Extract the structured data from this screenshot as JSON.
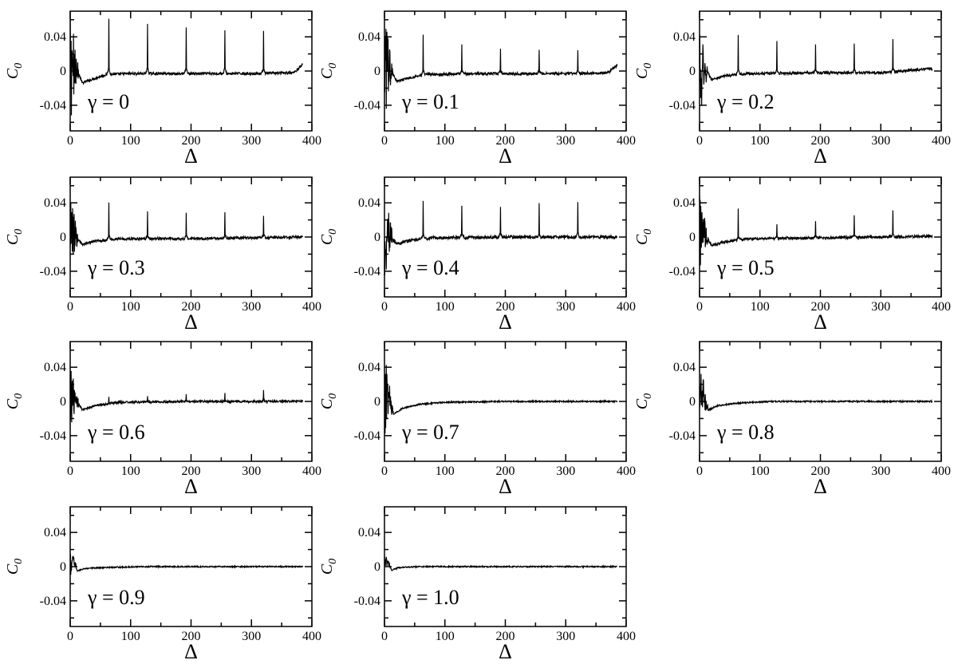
{
  "figure": {
    "panel_order": [
      "γ = 0",
      "γ = 0.1",
      "γ = 0.2",
      "γ = 0.3",
      "γ = 0.4",
      "γ = 0.5",
      "γ = 0.6",
      "γ = 0.7",
      "γ = 0.8",
      "γ = 0.9",
      "γ = 1.0"
    ]
  },
  "chart_data": [
    {
      "type": "line",
      "annotation": "γ = 0",
      "xlabel": "Δ",
      "ylabel": "C",
      "ylabel_sub": "0",
      "xlim": [
        0,
        400
      ],
      "ylim": [
        -0.07,
        0.07
      ],
      "xticks": [
        0,
        100,
        200,
        300,
        400
      ],
      "xtick_labels": [
        "0",
        "100",
        "200",
        "300",
        "400"
      ],
      "yticks": [
        0.04,
        0,
        -0.04
      ],
      "ytick_labels": [
        "0.04",
        "0",
        "-0.04"
      ],
      "series": [
        {
          "baseline": [
            [
              0,
              0
            ],
            [
              8,
              0.008
            ],
            [
              20,
              -0.014
            ],
            [
              35,
              -0.01
            ],
            [
              60,
              -0.004
            ],
            [
              100,
              -0.003
            ],
            [
              200,
              -0.003
            ],
            [
              300,
              -0.003
            ],
            [
              370,
              -0.002
            ],
            [
              385,
              0.008
            ]
          ],
          "spikes": [
            [
              64,
              0.066
            ],
            [
              128,
              0.059
            ],
            [
              192,
              0.054
            ],
            [
              256,
              0.051
            ],
            [
              320,
              0.051
            ]
          ],
          "initial_oscillation": {
            "range": [
              0,
              15
            ],
            "amplitude": 0.065
          },
          "noise": 0.0015
        }
      ]
    },
    {
      "type": "line",
      "annotation": "γ = 0.1",
      "xlabel": "Δ",
      "ylabel": "C",
      "ylabel_sub": "0",
      "xlim": [
        0,
        400
      ],
      "ylim": [
        -0.07,
        0.07
      ],
      "xticks": [
        0,
        100,
        200,
        300,
        400
      ],
      "xtick_labels": [
        "0",
        "100",
        "200",
        "300",
        "400"
      ],
      "yticks": [
        0.04,
        0,
        -0.04
      ],
      "ytick_labels": [
        "0.04",
        "0",
        "-0.04"
      ],
      "series": [
        {
          "baseline": [
            [
              0,
              0
            ],
            [
              8,
              0.005
            ],
            [
              20,
              -0.012
            ],
            [
              40,
              -0.008
            ],
            [
              70,
              -0.004
            ],
            [
              150,
              -0.003
            ],
            [
              300,
              -0.003
            ],
            [
              370,
              -0.002
            ],
            [
              385,
              0.007
            ]
          ],
          "spikes": [
            [
              64,
              0.046
            ],
            [
              128,
              0.033
            ],
            [
              192,
              0.03
            ],
            [
              256,
              0.028
            ],
            [
              320,
              0.027
            ]
          ],
          "initial_oscillation": {
            "range": [
              0,
              15
            ],
            "amplitude": 0.06
          },
          "noise": 0.0015
        }
      ]
    },
    {
      "type": "line",
      "annotation": "γ = 0.2",
      "xlabel": "Δ",
      "ylabel": "C",
      "ylabel_sub": "0",
      "xlim": [
        0,
        400
      ],
      "ylim": [
        -0.07,
        0.07
      ],
      "xticks": [
        0,
        100,
        200,
        300,
        400
      ],
      "xtick_labels": [
        "0",
        "100",
        "200",
        "300",
        "400"
      ],
      "yticks": [
        0.04,
        0,
        -0.04
      ],
      "ytick_labels": [
        "0.04",
        "0",
        "-0.04"
      ],
      "series": [
        {
          "baseline": [
            [
              0,
              0
            ],
            [
              8,
              0.004
            ],
            [
              20,
              -0.01
            ],
            [
              40,
              -0.006
            ],
            [
              80,
              -0.003
            ],
            [
              200,
              -0.002
            ],
            [
              300,
              -0.002
            ],
            [
              385,
              0.003
            ]
          ],
          "spikes": [
            [
              64,
              0.046
            ],
            [
              128,
              0.037
            ],
            [
              192,
              0.032
            ],
            [
              256,
              0.034
            ],
            [
              320,
              0.037
            ]
          ],
          "initial_oscillation": {
            "range": [
              0,
              15
            ],
            "amplitude": 0.06
          },
          "noise": 0.0015
        }
      ]
    },
    {
      "type": "line",
      "annotation": "γ = 0.3",
      "xlabel": "Δ",
      "ylabel": "C",
      "ylabel_sub": "0",
      "xlim": [
        0,
        400
      ],
      "ylim": [
        -0.07,
        0.07
      ],
      "xticks": [
        0,
        100,
        200,
        300,
        400
      ],
      "xtick_labels": [
        "0",
        "100",
        "200",
        "300",
        "400"
      ],
      "yticks": [
        0.04,
        0,
        -0.04
      ],
      "ytick_labels": [
        "0.04",
        "0",
        "-0.04"
      ],
      "series": [
        {
          "baseline": [
            [
              0,
              0
            ],
            [
              8,
              0.004
            ],
            [
              20,
              -0.009
            ],
            [
              40,
              -0.005
            ],
            [
              80,
              -0.002
            ],
            [
              200,
              -0.002
            ],
            [
              385,
              0.0
            ]
          ],
          "spikes": [
            [
              64,
              0.044
            ],
            [
              128,
              0.032
            ],
            [
              192,
              0.03
            ],
            [
              256,
              0.03
            ],
            [
              320,
              0.026
            ]
          ],
          "initial_oscillation": {
            "range": [
              0,
              15
            ],
            "amplitude": 0.05
          },
          "noise": 0.0015
        }
      ]
    },
    {
      "type": "line",
      "annotation": "γ = 0.4",
      "xlabel": "Δ",
      "ylabel": "C",
      "ylabel_sub": "0",
      "xlim": [
        0,
        400
      ],
      "ylim": [
        -0.07,
        0.07
      ],
      "xticks": [
        0,
        100,
        200,
        300,
        400
      ],
      "xtick_labels": [
        "0",
        "100",
        "200",
        "300",
        "400"
      ],
      "yticks": [
        0.04,
        0,
        -0.04
      ],
      "ytick_labels": [
        "0.04",
        "0",
        "-0.04"
      ],
      "series": [
        {
          "baseline": [
            [
              0,
              0
            ],
            [
              8,
              0.004
            ],
            [
              20,
              -0.008
            ],
            [
              40,
              -0.004
            ],
            [
              80,
              -0.001
            ],
            [
              200,
              0.0
            ],
            [
              385,
              0.0
            ]
          ],
          "spikes": [
            [
              64,
              0.046
            ],
            [
              128,
              0.038
            ],
            [
              192,
              0.036
            ],
            [
              256,
              0.039
            ],
            [
              320,
              0.04
            ]
          ],
          "initial_oscillation": {
            "range": [
              0,
              15
            ],
            "amplitude": 0.05
          },
          "noise": 0.0018
        }
      ]
    },
    {
      "type": "line",
      "annotation": "γ = 0.5",
      "xlabel": "Δ",
      "ylabel": "C",
      "ylabel_sub": "0",
      "xlim": [
        0,
        400
      ],
      "ylim": [
        -0.07,
        0.07
      ],
      "xticks": [
        0,
        100,
        200,
        300,
        400
      ],
      "xtick_labels": [
        "0",
        "100",
        "200",
        "300",
        "400"
      ],
      "yticks": [
        0.04,
        0,
        -0.04
      ],
      "ytick_labels": [
        "0.04",
        "0",
        "-0.04"
      ],
      "series": [
        {
          "baseline": [
            [
              0,
              0
            ],
            [
              8,
              0.004
            ],
            [
              20,
              -0.01
            ],
            [
              40,
              -0.006
            ],
            [
              80,
              -0.002
            ],
            [
              200,
              -0.001
            ],
            [
              385,
              0.001
            ]
          ],
          "spikes": [
            [
              64,
              0.036
            ],
            [
              128,
              0.018
            ],
            [
              192,
              0.021
            ],
            [
              256,
              0.025
            ],
            [
              320,
              0.032
            ]
          ],
          "initial_oscillation": {
            "range": [
              0,
              15
            ],
            "amplitude": 0.05
          },
          "noise": 0.0015
        }
      ]
    },
    {
      "type": "line",
      "annotation": "γ = 0.6",
      "xlabel": "Δ",
      "ylabel": "C",
      "ylabel_sub": "0",
      "xlim": [
        0,
        400
      ],
      "ylim": [
        -0.07,
        0.07
      ],
      "xticks": [
        0,
        100,
        200,
        300,
        400
      ],
      "xtick_labels": [
        "0",
        "100",
        "200",
        "300",
        "400"
      ],
      "yticks": [
        0.04,
        0,
        -0.04
      ],
      "ytick_labels": [
        "0.04",
        "0",
        "-0.04"
      ],
      "series": [
        {
          "baseline": [
            [
              0,
              0
            ],
            [
              8,
              0.004
            ],
            [
              20,
              -0.01
            ],
            [
              40,
              -0.005
            ],
            [
              80,
              -0.001
            ],
            [
              200,
              0.0
            ],
            [
              385,
              0.0
            ]
          ],
          "spikes": [
            [
              64,
              0.008
            ],
            [
              128,
              0.006
            ],
            [
              192,
              0.008
            ],
            [
              256,
              0.009
            ],
            [
              320,
              0.013
            ]
          ],
          "initial_oscillation": {
            "range": [
              0,
              15
            ],
            "amplitude": 0.04
          },
          "noise": 0.0013
        }
      ]
    },
    {
      "type": "line",
      "annotation": "γ = 0.7",
      "xlabel": "Δ",
      "ylabel": "C",
      "ylabel_sub": "0",
      "xlim": [
        0,
        400
      ],
      "ylim": [
        -0.07,
        0.07
      ],
      "xticks": [
        0,
        100,
        200,
        300,
        400
      ],
      "xtick_labels": [
        "0",
        "100",
        "200",
        "300",
        "400"
      ],
      "yticks": [
        0.04,
        0,
        -0.04
      ],
      "ytick_labels": [
        "0.04",
        "0",
        "-0.04"
      ],
      "series": [
        {
          "baseline": [
            [
              0,
              0
            ],
            [
              5,
              0.012
            ],
            [
              15,
              -0.015
            ],
            [
              30,
              -0.008
            ],
            [
              60,
              -0.003
            ],
            [
              100,
              -0.001
            ],
            [
              200,
              0.0
            ],
            [
              385,
              0.0
            ]
          ],
          "spikes": [],
          "initial_oscillation": {
            "range": [
              0,
              15
            ],
            "amplitude": 0.045
          },
          "noise": 0.0008
        }
      ]
    },
    {
      "type": "line",
      "annotation": "γ = 0.8",
      "xlabel": "Δ",
      "ylabel": "C",
      "ylabel_sub": "0",
      "xlim": [
        0,
        400
      ],
      "ylim": [
        -0.07,
        0.07
      ],
      "xticks": [
        0,
        100,
        200,
        300,
        400
      ],
      "xtick_labels": [
        "0",
        "100",
        "200",
        "300",
        "400"
      ],
      "yticks": [
        0.04,
        0,
        -0.04
      ],
      "ytick_labels": [
        "0.04",
        "0",
        "-0.04"
      ],
      "series": [
        {
          "baseline": [
            [
              0,
              0
            ],
            [
              5,
              0.01
            ],
            [
              15,
              -0.01
            ],
            [
              30,
              -0.005
            ],
            [
              60,
              -0.002
            ],
            [
              120,
              0.0
            ],
            [
              385,
              0.0
            ]
          ],
          "spikes": [],
          "initial_oscillation": {
            "range": [
              0,
              15
            ],
            "amplitude": 0.035
          },
          "noise": 0.0008
        }
      ]
    },
    {
      "type": "line",
      "annotation": "γ = 0.9",
      "xlabel": "Δ",
      "ylabel": "C",
      "ylabel_sub": "0",
      "xlim": [
        0,
        400
      ],
      "ylim": [
        -0.07,
        0.07
      ],
      "xticks": [
        0,
        100,
        200,
        300,
        400
      ],
      "xtick_labels": [
        "0",
        "100",
        "200",
        "300",
        "400"
      ],
      "yticks": [
        0.04,
        0,
        -0.04
      ],
      "ytick_labels": [
        "0.04",
        "0",
        "-0.04"
      ],
      "series": [
        {
          "baseline": [
            [
              0,
              0
            ],
            [
              5,
              0.008
            ],
            [
              12,
              -0.005
            ],
            [
              25,
              -0.002
            ],
            [
              60,
              -0.001
            ],
            [
              120,
              0.0
            ],
            [
              385,
              0.0
            ]
          ],
          "spikes": [],
          "initial_oscillation": {
            "range": [
              0,
              12
            ],
            "amplitude": 0.015
          },
          "noise": 0.0007
        }
      ]
    },
    {
      "type": "line",
      "annotation": "γ = 1.0",
      "xlabel": "Δ",
      "ylabel": "C",
      "ylabel_sub": "0",
      "xlim": [
        0,
        400
      ],
      "ylim": [
        -0.07,
        0.07
      ],
      "xticks": [
        0,
        100,
        200,
        300,
        400
      ],
      "xtick_labels": [
        "0",
        "100",
        "200",
        "300",
        "400"
      ],
      "yticks": [
        0.04,
        0,
        -0.04
      ],
      "ytick_labels": [
        "0.04",
        "0",
        "-0.04"
      ],
      "series": [
        {
          "baseline": [
            [
              0,
              0
            ],
            [
              5,
              0.006
            ],
            [
              12,
              -0.004
            ],
            [
              25,
              -0.001
            ],
            [
              60,
              0.0
            ],
            [
              385,
              0.0
            ]
          ],
          "spikes": [],
          "initial_oscillation": {
            "range": [
              0,
              12
            ],
            "amplitude": 0.012
          },
          "noise": 0.0007
        }
      ]
    }
  ]
}
